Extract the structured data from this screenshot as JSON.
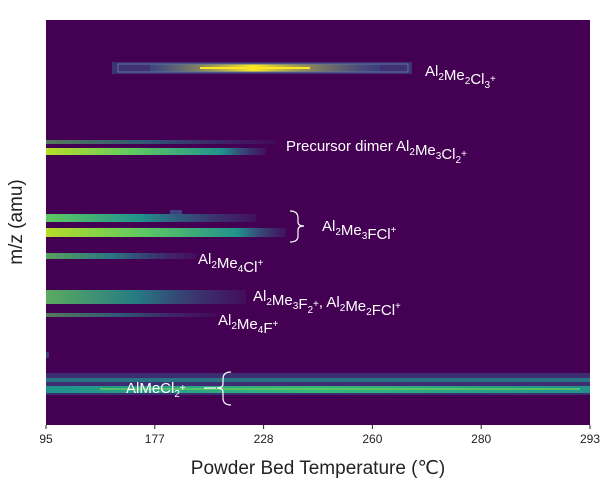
{
  "chart_data": {
    "type": "heatmap",
    "title": "",
    "xlabel": "Powder Bed Temperature (℃)",
    "ylabel": "m/z (amu)",
    "x_tick_labels": [
      "95",
      "177",
      "228",
      "260",
      "280",
      "293"
    ],
    "y_ticks_shown": false,
    "grid": false,
    "legend": "none",
    "colors": {
      "background": "#440154",
      "low": "#3b528b",
      "mid": "#21918c",
      "high": "#5ec962",
      "peak": "#fde725"
    },
    "bands": [
      {
        "label_parts": [
          [
            "Al",
            "n"
          ],
          [
            "2",
            "sub"
          ],
          [
            "Me",
            "n"
          ],
          [
            "2",
            "sub"
          ],
          [
            "Cl",
            "n"
          ],
          [
            "3",
            "sub"
          ],
          [
            "+",
            "sup"
          ]
        ],
        "x_start": "177",
        "x_end": "260",
        "intensity": 0.9
      },
      {
        "label_parts": [
          [
            "Precursor dimer Al",
            "n"
          ],
          [
            "2",
            "sub"
          ],
          [
            "Me",
            "n"
          ],
          [
            "3",
            "sub"
          ],
          [
            "Cl",
            "n"
          ],
          [
            "2",
            "sub"
          ],
          [
            "+",
            "sup"
          ]
        ],
        "x_start": "95",
        "x_end": "228",
        "intensity": 0.85
      },
      {
        "label_parts": [
          [
            "Al",
            "n"
          ],
          [
            "2",
            "sub"
          ],
          [
            "Me",
            "n"
          ],
          [
            "3",
            "sub"
          ],
          [
            "FCl",
            "n"
          ],
          [
            "+",
            "sup"
          ]
        ],
        "x_start": "95",
        "x_end": "228",
        "intensity": 0.95
      },
      {
        "label_parts": [
          [
            "Al",
            "n"
          ],
          [
            "2",
            "sub"
          ],
          [
            "Me",
            "n"
          ],
          [
            "4",
            "sub"
          ],
          [
            "Cl",
            "n"
          ],
          [
            "+",
            "sup"
          ]
        ],
        "x_start": "95",
        "x_end": "177",
        "intensity": 0.5
      },
      {
        "label_parts": [
          [
            "Al",
            "n"
          ],
          [
            "2",
            "sub"
          ],
          [
            "Me",
            "n"
          ],
          [
            "3",
            "sub"
          ],
          [
            "F",
            "n"
          ],
          [
            "2",
            "sub"
          ],
          [
            "+",
            "sup"
          ],
          [
            ", Al",
            "n"
          ],
          [
            "2",
            "sub"
          ],
          [
            "Me",
            "n"
          ],
          [
            "2",
            "sub"
          ],
          [
            "FCl",
            "n"
          ],
          [
            "+",
            "sup"
          ]
        ],
        "x_start": "95",
        "x_end": "228",
        "intensity": 0.6
      },
      {
        "label_parts": [
          [
            "Al",
            "n"
          ],
          [
            "2",
            "sub"
          ],
          [
            "Me",
            "n"
          ],
          [
            "4",
            "sub"
          ],
          [
            "F",
            "n"
          ],
          [
            "+",
            "sup"
          ]
        ],
        "x_start": "95",
        "x_end": "177",
        "intensity": 0.4
      },
      {
        "label_parts": [
          [
            "AlMeCl",
            "n"
          ],
          [
            "2",
            "sub"
          ],
          [
            "+",
            "sup"
          ]
        ],
        "x_start": "95",
        "x_end": "293",
        "intensity": 0.8
      }
    ]
  }
}
